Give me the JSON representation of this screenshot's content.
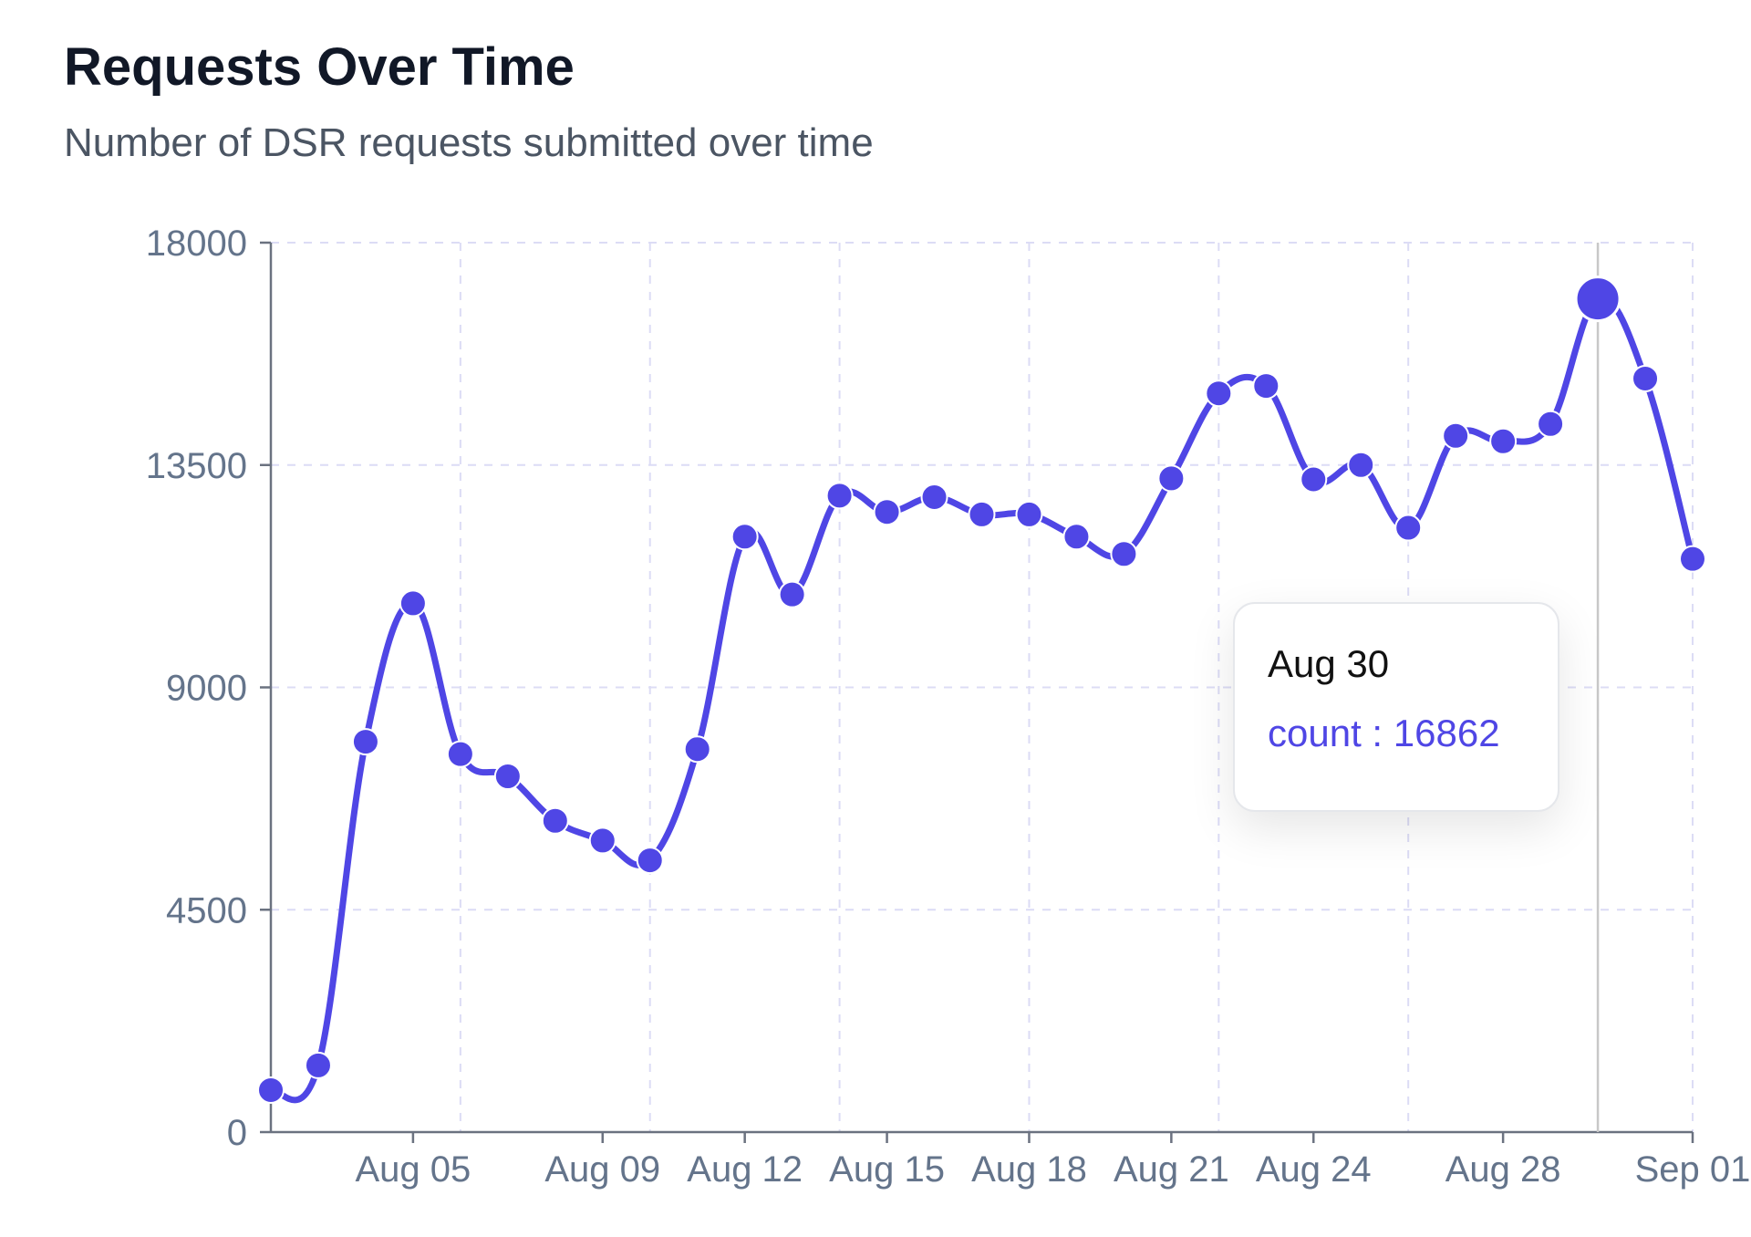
{
  "header": {
    "title": "Requests Over Time",
    "subtitle": "Number of DSR requests submitted over time"
  },
  "tooltip": {
    "date": "Aug 30",
    "series_label": "count",
    "separator": " : ",
    "value": "16862"
  },
  "colors": {
    "line": "#4f46e5",
    "grid": "#dcdcf5",
    "axis": "#6b7280",
    "tick_text": "#64748b",
    "cursor": "#c8c8c8"
  },
  "chart_data": {
    "type": "line",
    "title": "Requests Over Time",
    "subtitle": "Number of DSR requests submitted over time",
    "xlabel": "",
    "ylabel": "",
    "ylim": [
      0,
      18000
    ],
    "yticks": [
      0,
      4500,
      9000,
      13500,
      18000
    ],
    "xtick_labels": [
      {
        "label": "Aug 05",
        "index": 3
      },
      {
        "label": "Aug 09",
        "index": 7
      },
      {
        "label": "Aug 12",
        "index": 10
      },
      {
        "label": "Aug 15",
        "index": 13
      },
      {
        "label": "Aug 18",
        "index": 16
      },
      {
        "label": "Aug 21",
        "index": 19
      },
      {
        "label": "Aug 24",
        "index": 22
      },
      {
        "label": "Aug 28",
        "index": 26
      },
      {
        "label": "Sep 01",
        "index": 30
      }
    ],
    "grid": true,
    "legend": "none",
    "x": [
      "Aug 02",
      "Aug 03",
      "Aug 04",
      "Aug 05",
      "Aug 06",
      "Aug 07",
      "Aug 08",
      "Aug 09",
      "Aug 10",
      "Aug 11",
      "Aug 12",
      "Aug 13",
      "Aug 14",
      "Aug 15",
      "Aug 16",
      "Aug 17",
      "Aug 18",
      "Aug 19",
      "Aug 20",
      "Aug 21",
      "Aug 22",
      "Aug 23",
      "Aug 24",
      "Aug 25",
      "Aug 26",
      "Aug 27",
      "Aug 28",
      "Aug 29",
      "Aug 30",
      "Aug 31",
      "Sep 01"
    ],
    "series": [
      {
        "name": "count",
        "values": [
          850,
          1350,
          7900,
          10700,
          7650,
          7200,
          6300,
          5900,
          5500,
          7750,
          12050,
          10880,
          12880,
          12550,
          12850,
          12500,
          12500,
          12050,
          11700,
          13230,
          14950,
          15100,
          13210,
          13500,
          12230,
          14090,
          13980,
          14330,
          16862,
          15250,
          11600
        ]
      }
    ],
    "highlight_index": 28
  }
}
